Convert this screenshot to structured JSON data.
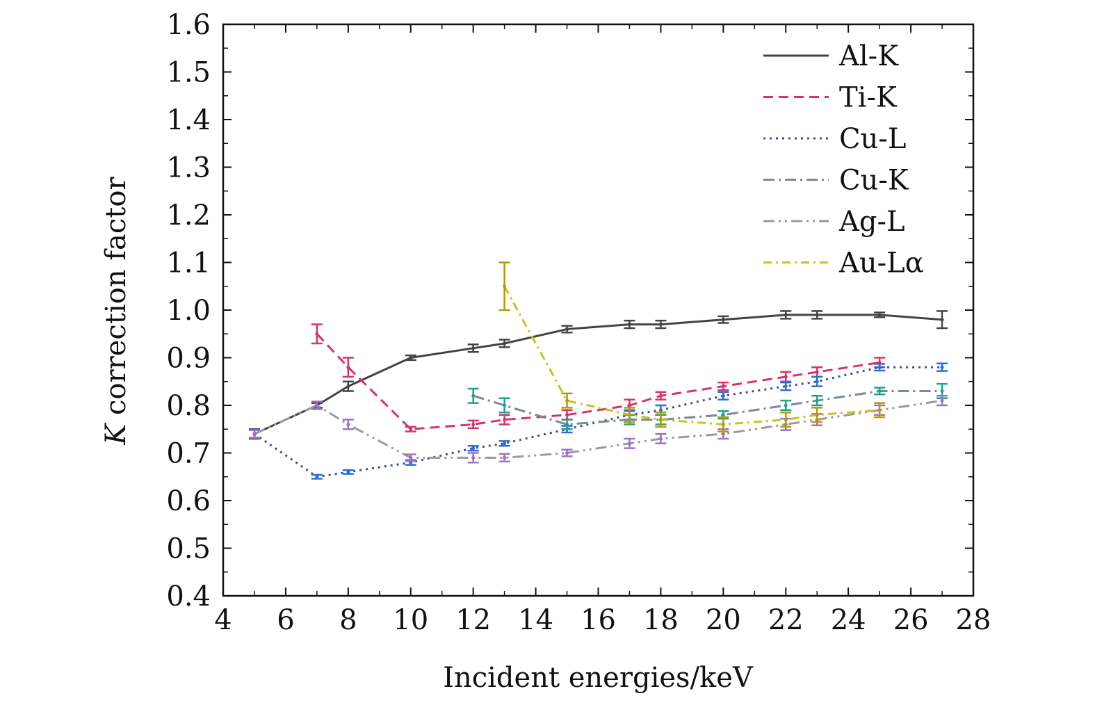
{
  "chart_data": {
    "type": "line",
    "xlabel": "Incident energies/keV",
    "ylabel_italic": "K",
    "ylabel_rest": " correction factor",
    "xlim": [
      4,
      28
    ],
    "ylim": [
      0.4,
      1.6
    ],
    "x_ticks": [
      "4",
      "6",
      "8",
      "10",
      "12",
      "14",
      "16",
      "18",
      "20",
      "22",
      "24",
      "26",
      "28"
    ],
    "y_ticks": [
      "0.4",
      "0.5",
      "0.6",
      "0.7",
      "0.8",
      "0.9",
      "1.0",
      "1.1",
      "1.2",
      "1.3",
      "1.4",
      "1.5",
      "1.6"
    ],
    "grid": false,
    "legend_position": "top-right",
    "series": [
      {
        "name": "Al-K",
        "color": "#444444",
        "errcolor": "#444444",
        "dash": "",
        "x": [
          5,
          7,
          8,
          10,
          12,
          13,
          15,
          17,
          18,
          20,
          22,
          23,
          25,
          27
        ],
        "y": [
          0.74,
          0.8,
          0.84,
          0.9,
          0.92,
          0.93,
          0.96,
          0.97,
          0.97,
          0.98,
          0.99,
          0.99,
          0.99,
          0.98
        ],
        "err": [
          0.01,
          0.005,
          0.01,
          0.005,
          0.008,
          0.008,
          0.007,
          0.008,
          0.008,
          0.007,
          0.008,
          0.008,
          0.005,
          0.018
        ]
      },
      {
        "name": "Ti-K",
        "color": "#d6336c",
        "errcolor": "#d6336c",
        "dash": "14,8",
        "x": [
          7,
          8,
          10,
          12,
          13,
          15,
          17,
          18,
          20,
          22,
          23,
          25
        ],
        "y": [
          0.95,
          0.88,
          0.75,
          0.76,
          0.77,
          0.78,
          0.8,
          0.82,
          0.84,
          0.86,
          0.87,
          0.89
        ],
        "err": [
          0.02,
          0.02,
          0.005,
          0.008,
          0.01,
          0.01,
          0.012,
          0.008,
          0.008,
          0.01,
          0.01,
          0.01
        ]
      },
      {
        "name": "Cu-L",
        "color": "#3d4f8f",
        "errcolor": "#2a6fd6",
        "dash": "3,6",
        "x": [
          5,
          7,
          8,
          10,
          12,
          13,
          15,
          17,
          18,
          20,
          22,
          23,
          25,
          27
        ],
        "y": [
          0.74,
          0.65,
          0.66,
          0.68,
          0.71,
          0.72,
          0.75,
          0.78,
          0.79,
          0.82,
          0.84,
          0.85,
          0.88,
          0.88
        ],
        "err": [
          0.008,
          0.004,
          0.004,
          0.005,
          0.005,
          0.005,
          0.007,
          0.01,
          0.01,
          0.008,
          0.008,
          0.01,
          0.007,
          0.008
        ]
      },
      {
        "name": "Cu-K",
        "color": "#7a8a94",
        "errcolor": "#1fa38a",
        "dash": "16,6,3,6",
        "x": [
          12,
          13,
          15,
          17,
          18,
          20,
          22,
          23,
          25,
          27
        ],
        "y": [
          0.82,
          0.8,
          0.76,
          0.77,
          0.77,
          0.78,
          0.8,
          0.81,
          0.83,
          0.83
        ],
        "err": [
          0.015,
          0.015,
          0.01,
          0.01,
          0.01,
          0.008,
          0.01,
          0.01,
          0.007,
          0.015
        ]
      },
      {
        "name": "Ag-L",
        "color": "#9a9a9a",
        "errcolor": "#a070c8",
        "dash": "16,6,3,6,3,6",
        "x": [
          5,
          7,
          8,
          10,
          12,
          13,
          15,
          17,
          18,
          20,
          22,
          23,
          25,
          27
        ],
        "y": [
          0.74,
          0.8,
          0.76,
          0.69,
          0.69,
          0.69,
          0.7,
          0.72,
          0.73,
          0.74,
          0.76,
          0.77,
          0.79,
          0.81
        ],
        "err": [
          0.008,
          0.008,
          0.01,
          0.007,
          0.01,
          0.008,
          0.007,
          0.01,
          0.01,
          0.01,
          0.012,
          0.012,
          0.01,
          0.01
        ]
      },
      {
        "name": "Au-Lα",
        "color": "#c9c21a",
        "errcolor": "#b89a00",
        "dash": "12,6,3,6",
        "x": [
          13,
          15,
          17,
          18,
          20,
          22,
          23,
          25
        ],
        "y": [
          1.05,
          0.81,
          0.78,
          0.77,
          0.76,
          0.77,
          0.78,
          0.79
        ],
        "err": [
          0.05,
          0.015,
          0.015,
          0.015,
          0.015,
          0.015,
          0.015,
          0.015
        ]
      }
    ]
  }
}
